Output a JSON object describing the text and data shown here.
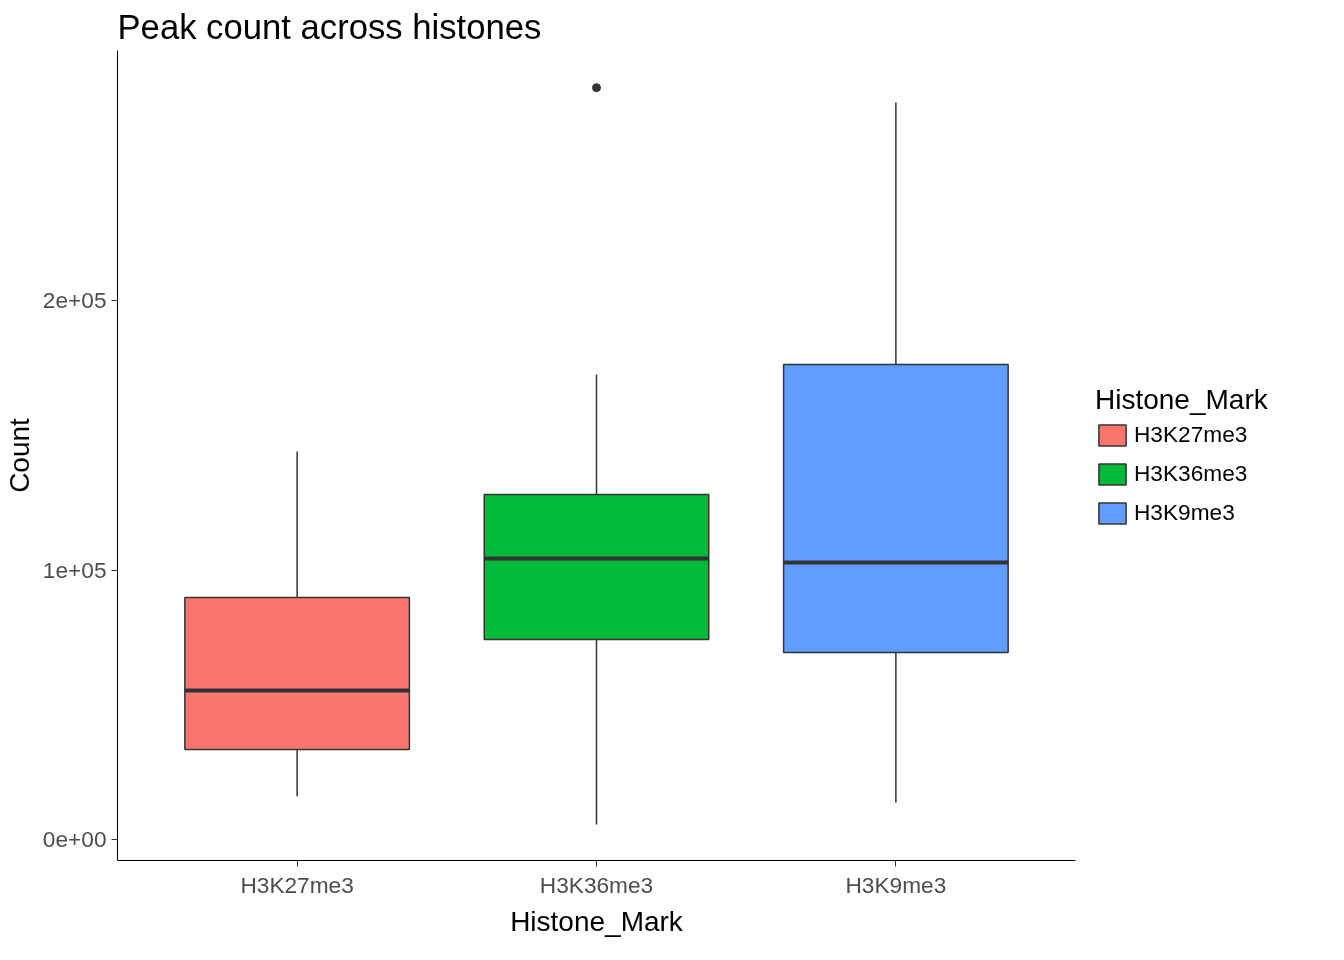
{
  "chart_data": {
    "type": "box",
    "title": "Peak count across histones",
    "xlabel": "Histone_Mark",
    "ylabel": "Count",
    "legend_title": "Histone_Mark",
    "categories": [
      "H3K27me3",
      "H3K36me3",
      "H3K9me3"
    ],
    "series": [
      {
        "name": "H3K27me3",
        "color": "#f8766d",
        "boxes": [
          {
            "low": 16000,
            "q1": 33400,
            "median": 55300,
            "q3": 89800,
            "high": 144000
          },
          null,
          null
        ]
      },
      {
        "name": "H3K36me3",
        "color": "#00ba38",
        "boxes": [
          null,
          {
            "low": 5600,
            "q1": 74200,
            "median": 104300,
            "q3": 128000,
            "high": 172500,
            "outliers": [
              279000
            ]
          },
          null
        ]
      },
      {
        "name": "H3K9me3",
        "color": "#619cff",
        "boxes": [
          null,
          null,
          {
            "low": 13700,
            "q1": 69400,
            "median": 102800,
            "q3": 176300,
            "high": 273500
          }
        ]
      }
    ],
    "ylim": [
      -7800,
      292800
    ],
    "yticks": [
      {
        "value": 0,
        "label": "0e+00"
      },
      {
        "value": 100000,
        "label": "1e+05"
      },
      {
        "value": 200000,
        "label": "2e+05"
      }
    ],
    "grid": false,
    "legend": "right"
  }
}
